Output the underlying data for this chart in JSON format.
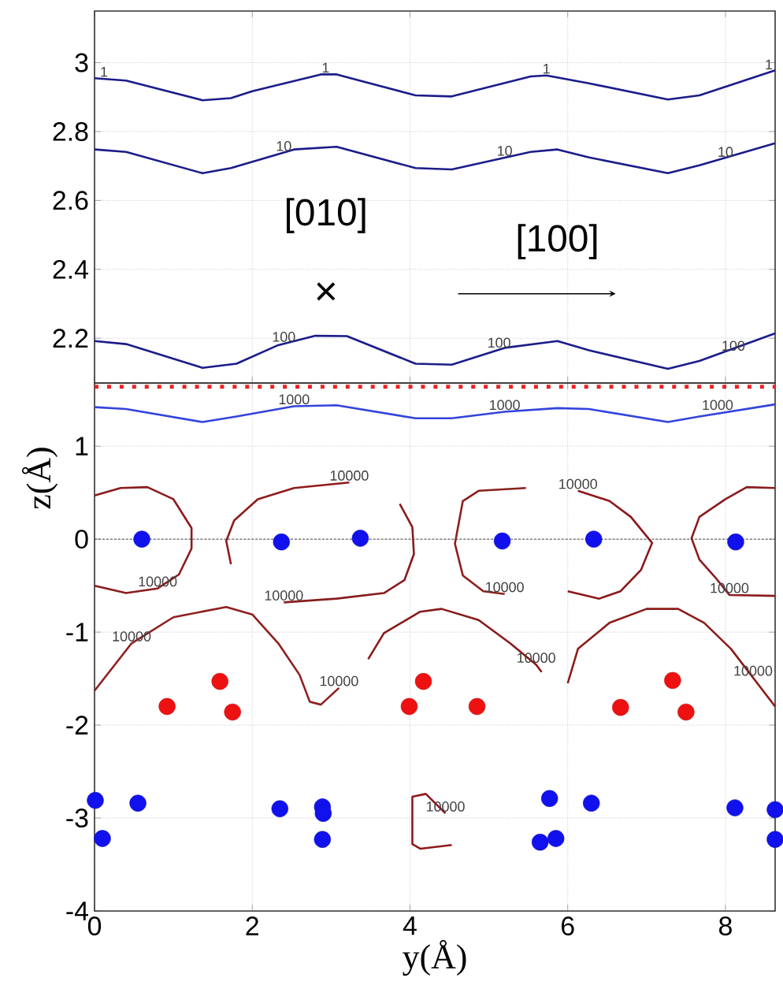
{
  "chart_data": [
    {
      "type": "line",
      "xlim": [
        0,
        8.63
      ],
      "ylim": [
        2.07,
        3.15
      ],
      "xticks": [
        0,
        2,
        4,
        6,
        8
      ],
      "yticks": [
        2.2,
        2.4,
        2.6,
        2.8,
        3
      ],
      "grid": true,
      "tick_labels": "y",
      "series": [
        {
          "color": "#1c1c8a",
          "line_style": "solid",
          "x": [
            0,
            0.4,
            1.37,
            1.73,
            2.0,
            2.87,
            3.07,
            4.07,
            4.53,
            5.53,
            5.73,
            6.27,
            7.27,
            7.67,
            8.63
          ],
          "values": [
            2.955,
            2.948,
            2.891,
            2.897,
            2.917,
            2.966,
            2.966,
            2.905,
            2.902,
            2.96,
            2.963,
            2.94,
            2.893,
            2.905,
            2.978
          ]
        },
        {
          "color": "#1c1c8a",
          "line_style": "solid",
          "x": [
            0,
            0.4,
            1.37,
            1.73,
            2.53,
            3.07,
            4.07,
            4.53,
            5.53,
            5.87,
            6.27,
            7.27,
            7.67,
            8.63
          ],
          "values": [
            2.748,
            2.741,
            2.679,
            2.694,
            2.748,
            2.756,
            2.694,
            2.69,
            2.741,
            2.748,
            2.725,
            2.679,
            2.702,
            2.766
          ]
        },
        {
          "color": "#1c1c8a",
          "line_style": "solid",
          "x": [
            0,
            0.4,
            1.37,
            1.8,
            2.33,
            2.8,
            3.2,
            4.07,
            4.53,
            5.2,
            5.87,
            6.27,
            7.27,
            7.67,
            8.63
          ],
          "values": [
            2.192,
            2.183,
            2.114,
            2.126,
            2.18,
            2.207,
            2.206,
            2.126,
            2.123,
            2.172,
            2.192,
            2.165,
            2.111,
            2.134,
            2.214
          ]
        }
      ],
      "annotations": [
        "[010]",
        "×",
        "[100]",
        {
          "text": "1",
          "x": 0.12,
          "y": 2.954
        },
        {
          "text": "1",
          "x": 2.93,
          "y": 2.966
        },
        {
          "text": "1",
          "x": 5.73,
          "y": 2.963
        },
        {
          "text": "1",
          "x": 8.55,
          "y": 2.975
        },
        {
          "text": "10",
          "x": 2.4,
          "y": 2.738
        },
        {
          "text": "10",
          "x": 5.2,
          "y": 2.724
        },
        {
          "text": "10",
          "x": 8.0,
          "y": 2.721
        },
        {
          "text": "100",
          "x": 2.4,
          "y": 2.184
        },
        {
          "text": "100",
          "x": 5.13,
          "y": 2.167
        },
        {
          "text": "100",
          "x": 8.1,
          "y": 2.158
        }
      ]
    },
    {
      "type": "line",
      "xlim": [
        0,
        8.63
      ],
      "ylim": [
        -4,
        1.68
      ],
      "xticks": [
        0,
        2,
        4,
        6,
        8
      ],
      "yticks": [
        -4,
        -3,
        -2,
        -1,
        0,
        1
      ],
      "grid": true,
      "xlabel": "y(Å)",
      "ylabel": "z(Å)",
      "ref_lines": [
        {
          "axis": "y",
          "value": 1.64,
          "color": "#ee2222",
          "line_style": "dotted"
        },
        {
          "axis": "y",
          "value": 0,
          "color": "#444444",
          "line_style": "dashed"
        }
      ],
      "series": [
        {
          "color": "#3344dd",
          "line_style": "solid",
          "x": [
            0,
            0.4,
            1.37,
            1.8,
            2.53,
            3.07,
            4.07,
            4.53,
            5.2,
            5.87,
            6.27,
            7.27,
            7.67,
            8.63
          ],
          "values": [
            1.42,
            1.4,
            1.26,
            1.32,
            1.43,
            1.44,
            1.3,
            1.3,
            1.37,
            1.41,
            1.4,
            1.26,
            1.32,
            1.45
          ]
        },
        {
          "color": "#8b1c1c",
          "line_style": "solid",
          "x": [
            0,
            0.33,
            0.67,
            1.0,
            1.23,
            1.23,
            1.07,
            0.8,
            0.4,
            0
          ],
          "values": [
            0.47,
            0.55,
            0.56,
            0.43,
            0.12,
            -0.1,
            -0.38,
            -0.53,
            -0.58,
            -0.5
          ]
        },
        {
          "color": "#8f1c1c",
          "line_style": "solid",
          "x": [
            1.73,
            1.67,
            1.77,
            2.07,
            2.53,
            3.23
          ],
          "values": [
            -0.27,
            -0.02,
            0.2,
            0.43,
            0.55,
            0.61
          ]
        },
        {
          "color": "#871c1c",
          "line_style": "solid",
          "x": [
            3.87,
            4.03,
            4.05,
            3.93,
            3.67,
            3.07,
            2.4
          ],
          "values": [
            0.38,
            0.13,
            -0.16,
            -0.44,
            -0.58,
            -0.64,
            -0.68
          ]
        },
        {
          "color": "#8b201c",
          "line_style": "solid",
          "x": [
            5.2,
            4.93,
            4.67,
            4.57,
            4.67,
            4.87,
            5.47
          ],
          "values": [
            -0.59,
            -0.56,
            -0.39,
            -0.05,
            0.41,
            0.52,
            0.55
          ]
        },
        {
          "color": "#8b181c",
          "line_style": "solid",
          "x": [
            6.13,
            6.53,
            6.8,
            7.07,
            6.93,
            6.67,
            6.4,
            6.0
          ],
          "values": [
            0.52,
            0.41,
            0.24,
            -0.04,
            -0.33,
            -0.56,
            -0.64,
            -0.56
          ]
        },
        {
          "color": "#8b1c20",
          "line_style": "solid",
          "x": [
            8.63,
            8.27,
            8.0,
            7.67,
            7.57,
            7.67,
            7.87,
            8.05,
            8.63
          ],
          "values": [
            0.55,
            0.56,
            0.43,
            0.24,
            0.01,
            -0.22,
            -0.41,
            -0.6,
            -0.61
          ]
        },
        {
          "color": "#8e1f1f",
          "line_style": "solid",
          "x": [
            0,
            0.47,
            1.0,
            1.67,
            2.0,
            2.33,
            2.6,
            2.73,
            2.87,
            3.1
          ],
          "values": [
            -1.63,
            -1.12,
            -0.84,
            -0.73,
            -0.81,
            -1.12,
            -1.46,
            -1.75,
            -1.78,
            -1.6
          ]
        },
        {
          "color": "#881a1a",
          "line_style": "solid",
          "x": [
            3.47,
            3.67,
            4.13,
            4.4,
            4.87,
            5.27,
            5.6,
            5.67
          ],
          "values": [
            -1.29,
            -1.01,
            -0.78,
            -0.75,
            -0.87,
            -1.12,
            -1.35,
            -1.43
          ]
        },
        {
          "color": "#8b1c18",
          "line_style": "solid",
          "x": [
            6.0,
            6.13,
            6.53,
            7.0,
            7.4,
            7.73,
            8.07,
            8.63
          ],
          "values": [
            -1.55,
            -1.18,
            -0.9,
            -0.75,
            -0.75,
            -0.9,
            -1.18,
            -1.8
          ]
        },
        {
          "color": "#8e1b1e",
          "line_style": "solid",
          "x": [
            4.45,
            4.2,
            4.03,
            4.03,
            4.13,
            4.53
          ],
          "values": [
            -2.95,
            -2.74,
            -2.77,
            -3.28,
            -3.33,
            -3.29
          ]
        },
        {
          "type": "scatter",
          "color": "#1111ee",
          "marker": "circle",
          "x": [
            0.6,
            2.37,
            3.37,
            5.17,
            6.33,
            8.13,
            0.01,
            0.1,
            0.55,
            2.35,
            2.89,
            2.9,
            2.89,
            5.77,
            5.65,
            5.85,
            6.3,
            8.12,
            8.63,
            8.63
          ],
          "values": [
            0,
            -0.03,
            0.01,
            -0.02,
            0,
            -0.03,
            -2.81,
            -3.22,
            -2.84,
            -2.9,
            -2.88,
            -2.95,
            -3.23,
            -2.79,
            -3.26,
            -3.22,
            -2.84,
            -2.89,
            -2.91,
            -3.23
          ]
        },
        {
          "type": "scatter",
          "color": "#ee1111",
          "marker": "circle",
          "x": [
            1.59,
            0.92,
            1.75,
            4.17,
            3.99,
            4.85,
            7.33,
            6.67,
            7.5
          ],
          "values": [
            -1.53,
            -1.8,
            -1.86,
            -1.53,
            -1.8,
            -1.8,
            -1.52,
            -1.81,
            -1.86
          ]
        }
      ],
      "annotations": [
        {
          "text": "1000",
          "x": 2.53,
          "y": 1.43
        },
        {
          "text": "1000",
          "x": 5.2,
          "y": 1.37
        },
        {
          "text": "1000",
          "x": 7.9,
          "y": 1.37
        },
        {
          "text": "10000",
          "x": 3.23,
          "y": 0.61
        },
        {
          "text": "10000",
          "x": 6.13,
          "y": 0.52
        },
        {
          "text": "10000",
          "x": 0.8,
          "y": -0.53
        },
        {
          "text": "10000",
          "x": 2.4,
          "y": -0.68
        },
        {
          "text": "10000",
          "x": 5.2,
          "y": -0.59
        },
        {
          "text": "10000",
          "x": 8.05,
          "y": -0.6
        },
        {
          "text": "10000",
          "x": 0.47,
          "y": -1.12
        },
        {
          "text": "10000",
          "x": 3.1,
          "y": -1.6
        },
        {
          "text": "10000",
          "x": 5.6,
          "y": -1.35
        },
        {
          "text": "10000",
          "x": 8.35,
          "y": -1.49
        },
        {
          "text": "10000",
          "x": 4.45,
          "y": -2.95
        }
      ]
    }
  ]
}
